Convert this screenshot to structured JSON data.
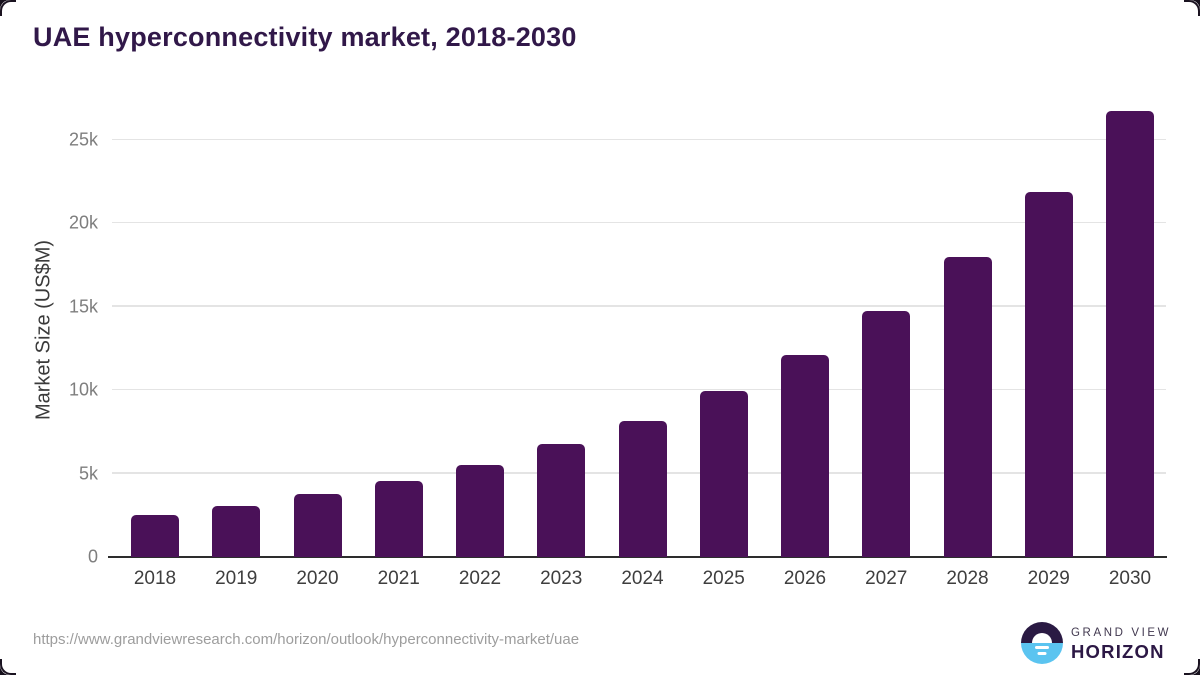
{
  "chart_data": {
    "type": "bar",
    "title": "UAE hyperconnectivity market, 2018-2030",
    "categories": [
      "2018",
      "2019",
      "2020",
      "2021",
      "2022",
      "2023",
      "2024",
      "2025",
      "2026",
      "2027",
      "2028",
      "2029",
      "2030"
    ],
    "values": [
      2500,
      3060,
      3760,
      4570,
      5530,
      6760,
      8170,
      9930,
      12090,
      14750,
      18000,
      21880,
      26740
    ],
    "xlabel": "",
    "ylabel": "Market Size (US$M)",
    "ylim": [
      0,
      27400
    ],
    "yticks": [
      {
        "value": 0,
        "label": "0"
      },
      {
        "value": 5000,
        "label": "5k"
      },
      {
        "value": 10000,
        "label": "10k"
      },
      {
        "value": 15000,
        "label": "15k"
      },
      {
        "value": 20000,
        "label": "20k"
      },
      {
        "value": 25000,
        "label": "25k"
      }
    ],
    "grid": true,
    "legend": "none",
    "bar_color": "#4a1158"
  },
  "footer": {
    "source_url": "https://www.grandviewresearch.com/horizon/outlook/hyperconnectivity-market/uae",
    "logo": {
      "line1": "GRAND VIEW",
      "line2": "HORIZON"
    }
  },
  "colors": {
    "bar": "#4a1158",
    "title_text": "#311849",
    "axis_line": "#2d2d2d",
    "gridline": "#e4e4e4",
    "ytick_text": "#7e7e7e",
    "xtick_text": "#3e3e3e",
    "url_text": "#9d9d9d",
    "logo_dark_purple": "#2a1a43",
    "logo_sky_blue": "#5bc4f0",
    "frame_corner": "#1a1220"
  }
}
